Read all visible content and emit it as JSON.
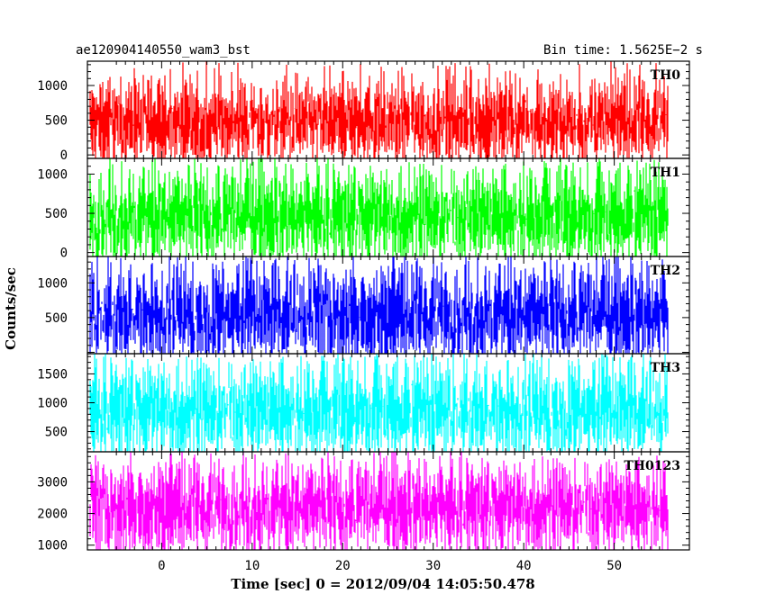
{
  "header": {
    "left_title": "ae120904140550_wam3_bst",
    "right_title": "Bin time: 1.5625E−2 s"
  },
  "axes": {
    "xlabel": "Time [sec] 0 = 2012/09/04 14:05:50.478",
    "ylabel": "Counts/sec"
  },
  "chart_data": {
    "type": "line",
    "title": "ae120904140550_wam3_bst",
    "subtitle": "Bin time: 1.5625E−2 s",
    "xlabel": "Time [sec] 0 = 2012/09/04 14:05:50.478",
    "ylabel": "Counts/sec",
    "xlim": [
      -8.2,
      58.3
    ],
    "x_range": [
      -8.0,
      56.0
    ],
    "bin_time": 0.015625,
    "x_ticks": [
      "0",
      "10",
      "20",
      "30",
      "40",
      "50"
    ],
    "x_tick_values": [
      0,
      10,
      20,
      30,
      40,
      50
    ],
    "series": [
      {
        "name": "TH0",
        "color": "#ff0000",
        "ylim": [
          -50,
          1350
        ],
        "y_ticks": [
          "0",
          "500",
          "1000"
        ],
        "y_tick_values": [
          0,
          500,
          1000
        ],
        "typical_min": 80,
        "typical_max": 1100,
        "mean": 480,
        "extreme_max": 1350
      },
      {
        "name": "TH1",
        "color": "#00ff00",
        "ylim": [
          -50,
          1200
        ],
        "y_ticks": [
          "0",
          "500",
          "1000"
        ],
        "y_tick_values": [
          0,
          500,
          1000
        ],
        "typical_min": 50,
        "typical_max": 1050,
        "mean": 470,
        "extreme_max": 1200
      },
      {
        "name": "TH2",
        "color": "#0000ff",
        "ylim": [
          -20,
          1380
        ],
        "y_ticks": [
          "500",
          "1000"
        ],
        "y_tick_values": [
          500,
          1000
        ],
        "typical_min": 80,
        "typical_max": 1250,
        "mean": 550,
        "extreme_max": 1380
      },
      {
        "name": "TH3",
        "color": "#00ffff",
        "ylim": [
          150,
          1850
        ],
        "y_ticks": [
          "500",
          "1000",
          "1500"
        ],
        "y_tick_values": [
          500,
          1000,
          1500
        ],
        "typical_min": 300,
        "typical_max": 1700,
        "mean": 870,
        "extreme_max": 1850
      },
      {
        "name": "TH0123",
        "color": "#ff00ff",
        "ylim": [
          850,
          3950
        ],
        "y_ticks": [
          "1000",
          "2000",
          "3000"
        ],
        "y_tick_values": [
          1000,
          2000,
          3000
        ],
        "typical_min": 1100,
        "typical_max": 3500,
        "mean": 2200,
        "extreme_max": 3950
      }
    ]
  }
}
